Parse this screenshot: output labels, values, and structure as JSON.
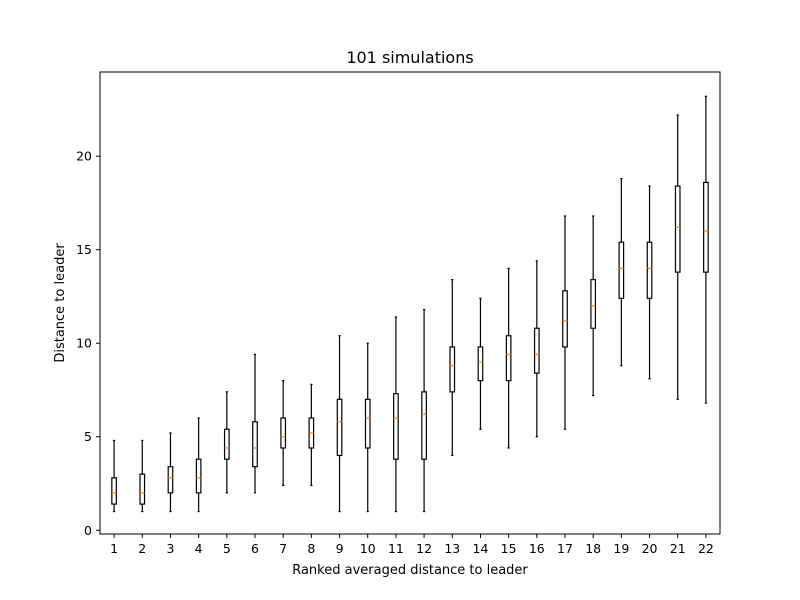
{
  "chart_data": {
    "type": "box",
    "title": "101 simulations",
    "xlabel": "Ranked averaged distance to leader",
    "ylabel": "Distance to leader",
    "xlim": [
      0.5,
      22.5
    ],
    "ylim": [
      -0.2,
      24.5
    ],
    "yticks": [
      0,
      5,
      10,
      15,
      20
    ],
    "grid": false,
    "legend": "none",
    "colors": {
      "box": "#000000",
      "median": "#ff7f0e"
    },
    "categories": [
      "1",
      "2",
      "3",
      "4",
      "5",
      "6",
      "7",
      "8",
      "9",
      "10",
      "11",
      "12",
      "13",
      "14",
      "15",
      "16",
      "17",
      "18",
      "19",
      "20",
      "21",
      "22"
    ],
    "boxes": [
      {
        "whislo": 1.0,
        "q1": 1.4,
        "med": 2.0,
        "q3": 2.8,
        "whishi": 4.8
      },
      {
        "whislo": 1.0,
        "q1": 1.4,
        "med": 2.0,
        "q3": 3.0,
        "whishi": 4.8
      },
      {
        "whislo": 1.0,
        "q1": 2.0,
        "med": 2.8,
        "q3": 3.4,
        "whishi": 5.2
      },
      {
        "whislo": 1.0,
        "q1": 2.0,
        "med": 2.8,
        "q3": 3.8,
        "whishi": 6.0
      },
      {
        "whislo": 2.0,
        "q1": 3.8,
        "med": 4.4,
        "q3": 5.4,
        "whishi": 7.4
      },
      {
        "whislo": 2.0,
        "q1": 3.4,
        "med": 4.4,
        "q3": 5.8,
        "whishi": 9.4
      },
      {
        "whislo": 2.4,
        "q1": 4.4,
        "med": 5.0,
        "q3": 6.0,
        "whishi": 8.0
      },
      {
        "whislo": 2.4,
        "q1": 4.4,
        "med": 5.2,
        "q3": 6.0,
        "whishi": 7.8
      },
      {
        "whislo": 1.0,
        "q1": 4.0,
        "med": 5.8,
        "q3": 7.0,
        "whishi": 10.4
      },
      {
        "whislo": 1.0,
        "q1": 4.4,
        "med": 6.0,
        "q3": 7.0,
        "whishi": 10.0
      },
      {
        "whislo": 1.0,
        "q1": 3.8,
        "med": 6.0,
        "q3": 7.3,
        "whishi": 11.4
      },
      {
        "whislo": 1.0,
        "q1": 3.8,
        "med": 6.2,
        "q3": 7.4,
        "whishi": 11.8
      },
      {
        "whislo": 4.0,
        "q1": 7.4,
        "med": 8.8,
        "q3": 9.8,
        "whishi": 13.4
      },
      {
        "whislo": 5.4,
        "q1": 8.0,
        "med": 9.0,
        "q3": 9.8,
        "whishi": 12.4
      },
      {
        "whislo": 4.4,
        "q1": 8.0,
        "med": 9.4,
        "q3": 10.4,
        "whishi": 14.0
      },
      {
        "whislo": 5.0,
        "q1": 8.4,
        "med": 9.4,
        "q3": 10.8,
        "whishi": 14.4
      },
      {
        "whislo": 5.4,
        "q1": 9.8,
        "med": 11.2,
        "q3": 12.8,
        "whishi": 16.8
      },
      {
        "whislo": 7.2,
        "q1": 10.8,
        "med": 12.0,
        "q3": 13.4,
        "whishi": 16.8
      },
      {
        "whislo": 8.8,
        "q1": 12.4,
        "med": 14.0,
        "q3": 15.4,
        "whishi": 18.8
      },
      {
        "whislo": 8.1,
        "q1": 12.4,
        "med": 14.0,
        "q3": 15.4,
        "whishi": 18.4
      },
      {
        "whislo": 7.0,
        "q1": 13.8,
        "med": 16.2,
        "q3": 18.4,
        "whishi": 22.2
      },
      {
        "whislo": 6.8,
        "q1": 13.8,
        "med": 16.0,
        "q3": 18.6,
        "whishi": 23.2
      }
    ]
  }
}
